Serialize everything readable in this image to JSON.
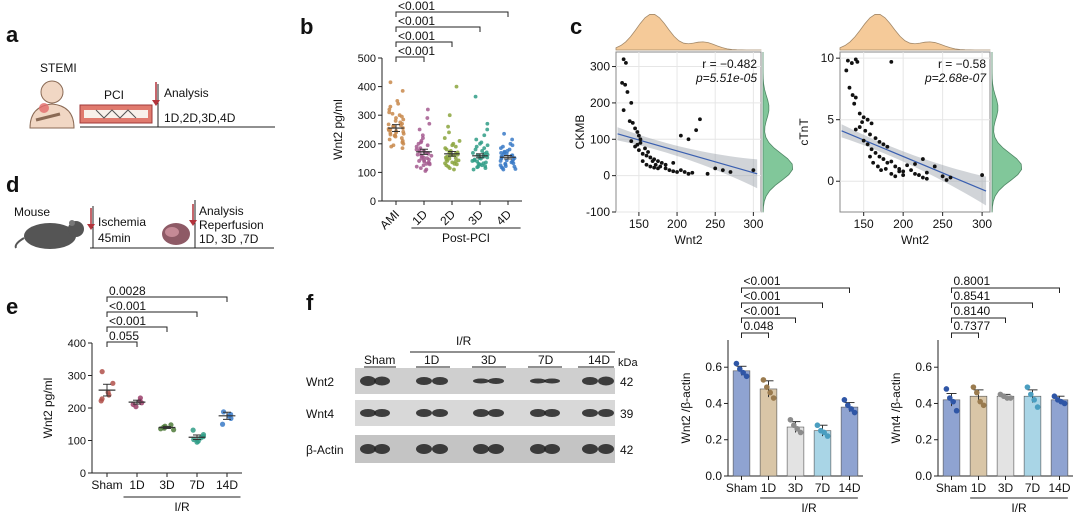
{
  "panel_letters": [
    "a",
    "b",
    "c",
    "d",
    "e",
    "f"
  ],
  "panel_a": {
    "stemi": "STEMI",
    "pci": "PCI",
    "analysis": "Analysis",
    "timepoints": "1D,2D,3D,4D"
  },
  "panel_d": {
    "mouse": "Mouse",
    "ischemia": "Ischemia",
    "ischemia_time": "45min",
    "analysis": "Analysis",
    "reperfusion": "Reperfusion",
    "timepoints": "1D, 3D ,7D"
  },
  "panel_f_blot": {
    "group_label": "I/R",
    "lanes": [
      "Sham",
      "1D",
      "3D",
      "7D",
      "14D"
    ],
    "kda_label": "kDa",
    "rows": [
      {
        "name": "Wnt2",
        "kda": "42"
      },
      {
        "name": "Wnt4",
        "kda": "39"
      },
      {
        "name": "β-Actin",
        "kda": "42"
      }
    ]
  },
  "chart_data": [
    {
      "id": "b",
      "type": "scatter",
      "ylabel": "Wnt2 pg/ml",
      "xlabel": "Post-PCI",
      "categories": [
        "AMI",
        "1D",
        "2D",
        "3D",
        "4D"
      ],
      "yticks": [
        0,
        100,
        200,
        300,
        400,
        500
      ],
      "ylim": [
        0,
        500
      ],
      "means": [
        255,
        172,
        165,
        158,
        153
      ],
      "sem": [
        12,
        9,
        8,
        7,
        6
      ],
      "points": [
        [
          415,
          385,
          350,
          340,
          330,
          320,
          310,
          305,
          300,
          295,
          290,
          285,
          280,
          275,
          270,
          268,
          265,
          262,
          260,
          255,
          252,
          250,
          248,
          245,
          242,
          240,
          238,
          235,
          232,
          230,
          228,
          225,
          220,
          215,
          210,
          205,
          200,
          195,
          190,
          185
        ],
        [
          320,
          290,
          270,
          250,
          230,
          220,
          210,
          205,
          200,
          195,
          190,
          185,
          180,
          178,
          175,
          172,
          170,
          168,
          165,
          162,
          160,
          158,
          155,
          152,
          150,
          148,
          145,
          142,
          140,
          138,
          135,
          132,
          130,
          128,
          125,
          120,
          115,
          110,
          105
        ],
        [
          400,
          300,
          260,
          240,
          220,
          210,
          200,
          195,
          190,
          185,
          180,
          175,
          172,
          170,
          168,
          165,
          162,
          160,
          158,
          155,
          152,
          150,
          148,
          145,
          142,
          140,
          138,
          135,
          132,
          130,
          128,
          125,
          120,
          115,
          110
        ],
        [
          365,
          270,
          250,
          230,
          215,
          205,
          200,
          195,
          190,
          185,
          180,
          175,
          170,
          168,
          165,
          162,
          160,
          158,
          155,
          152,
          150,
          148,
          145,
          142,
          140,
          138,
          135,
          132,
          130,
          128,
          125,
          122,
          120,
          118,
          115,
          110
        ],
        [
          235,
          215,
          200,
          195,
          190,
          185,
          180,
          175,
          172,
          170,
          168,
          165,
          162,
          160,
          158,
          155,
          152,
          150,
          148,
          145,
          142,
          140,
          138,
          135,
          132,
          130,
          128,
          125,
          122,
          120,
          118,
          115,
          112,
          110
        ]
      ],
      "colors": [
        "#c8884b",
        "#a45a8f",
        "#8ba53d",
        "#2f9c86",
        "#3a7ac7"
      ],
      "comparisons": [
        {
          "from": "AMI",
          "to": "1D",
          "p": "<0.001"
        },
        {
          "from": "AMI",
          "to": "2D",
          "p": "<0.001"
        },
        {
          "from": "AMI",
          "to": "3D",
          "p": "<0.001"
        },
        {
          "from": "AMI",
          "to": "4D",
          "p": "<0.001"
        }
      ]
    },
    {
      "id": "c1",
      "type": "scatter",
      "xlabel": "Wnt2",
      "ylabel": "CKMB",
      "xticks": [
        150,
        200,
        250,
        300
      ],
      "yticks": [
        -100,
        0,
        100,
        200,
        300
      ],
      "xlim": [
        120,
        310
      ],
      "ylim": [
        -100,
        340
      ],
      "r_text": "r = −0.482",
      "p_text": "p=5.51e-05",
      "fit": [
        [
          122,
          115
        ],
        [
          305,
          5
        ]
      ],
      "points": [
        [
          130,
          320
        ],
        [
          133,
          310
        ],
        [
          128,
          255
        ],
        [
          132,
          250
        ],
        [
          135,
          230
        ],
        [
          140,
          200
        ],
        [
          130,
          180
        ],
        [
          138,
          150
        ],
        [
          142,
          145
        ],
        [
          145,
          130
        ],
        [
          148,
          120
        ],
        [
          150,
          110
        ],
        [
          152,
          100
        ],
        [
          140,
          95
        ],
        [
          145,
          80
        ],
        [
          150,
          70
        ],
        [
          155,
          60
        ],
        [
          160,
          55
        ],
        [
          165,
          50
        ],
        [
          170,
          45
        ],
        [
          175,
          40
        ],
        [
          180,
          35
        ],
        [
          148,
          85
        ],
        [
          152,
          90
        ],
        [
          158,
          75
        ],
        [
          162,
          65
        ],
        [
          168,
          40
        ],
        [
          172,
          30
        ],
        [
          178,
          25
        ],
        [
          185,
          20
        ],
        [
          190,
          15
        ],
        [
          195,
          12
        ],
        [
          200,
          10
        ],
        [
          205,
          15
        ],
        [
          210,
          10
        ],
        [
          215,
          5
        ],
        [
          155,
          40
        ],
        [
          160,
          30
        ],
        [
          165,
          25
        ],
        [
          170,
          22
        ],
        [
          175,
          20
        ],
        [
          185,
          30
        ],
        [
          195,
          35
        ],
        [
          205,
          110
        ],
        [
          225,
          125
        ],
        [
          230,
          155
        ],
        [
          215,
          100
        ],
        [
          250,
          20
        ],
        [
          260,
          15
        ],
        [
          270,
          10
        ],
        [
          300,
          15
        ],
        [
          240,
          5
        ],
        [
          220,
          8
        ]
      ]
    },
    {
      "id": "c2",
      "type": "scatter",
      "xlabel": "Wnt2",
      "ylabel": "cTnT",
      "xticks": [
        150,
        200,
        250,
        300
      ],
      "yticks": [
        0,
        5,
        10
      ],
      "xlim": [
        120,
        310
      ],
      "ylim": [
        -2.5,
        10.5
      ],
      "r_text": "r = −0.58",
      "p_text": "p=2.68e-07",
      "fit": [
        [
          122,
          4.1
        ],
        [
          305,
          -0.8
        ]
      ],
      "points": [
        [
          130,
          9.8
        ],
        [
          135,
          9.6
        ],
        [
          140,
          9.9
        ],
        [
          142,
          9.7
        ],
        [
          128,
          9
        ],
        [
          132,
          7.6
        ],
        [
          136,
          7
        ],
        [
          140,
          6.8
        ],
        [
          138,
          6.3
        ],
        [
          145,
          5.5
        ],
        [
          150,
          5.2
        ],
        [
          155,
          5
        ],
        [
          148,
          4.8
        ],
        [
          140,
          4.2
        ],
        [
          145,
          4.4
        ],
        [
          152,
          4.1
        ],
        [
          158,
          3.8
        ],
        [
          160,
          4.7
        ],
        [
          165,
          3.5
        ],
        [
          170,
          3.2
        ],
        [
          175,
          3
        ],
        [
          180,
          2.8
        ],
        [
          150,
          3.3
        ],
        [
          155,
          3
        ],
        [
          160,
          2.6
        ],
        [
          165,
          2.3
        ],
        [
          170,
          2
        ],
        [
          175,
          1.8
        ],
        [
          180,
          1.5
        ],
        [
          185,
          1.6
        ],
        [
          190,
          1.2
        ],
        [
          195,
          1
        ],
        [
          200,
          0.8
        ],
        [
          205,
          1.3
        ],
        [
          210,
          0.9
        ],
        [
          215,
          0.6
        ],
        [
          220,
          0.5
        ],
        [
          225,
          0.3
        ],
        [
          230,
          0.2
        ],
        [
          158,
          2
        ],
        [
          162,
          1.5
        ],
        [
          168,
          1.2
        ],
        [
          172,
          0.9
        ],
        [
          178,
          1
        ],
        [
          185,
          0.6
        ],
        [
          190,
          0.4
        ],
        [
          195,
          0.8
        ],
        [
          200,
          0.5
        ],
        [
          215,
          1.4
        ],
        [
          225,
          1.8
        ],
        [
          240,
          1.2
        ],
        [
          250,
          0.4
        ],
        [
          255,
          0.1
        ],
        [
          260,
          0.3
        ],
        [
          300,
          0.5
        ],
        [
          185,
          9.7
        ],
        [
          230,
          0.7
        ]
      ]
    },
    {
      "id": "e",
      "type": "scatter",
      "ylabel": "Wnt2  pg/ml",
      "xlabel": "I/R",
      "categories": [
        "Sham",
        "1D",
        "3D",
        "7D",
        "14D"
      ],
      "yticks": [
        0,
        100,
        200,
        300,
        400
      ],
      "ylim": [
        0,
        400
      ],
      "means": [
        255,
        218,
        140,
        110,
        176
      ],
      "sem": [
        18,
        6,
        3,
        7,
        11
      ],
      "points": [
        [
          312,
          276,
          248,
          240,
          228,
          222
        ],
        [
          231,
          222,
          216,
          211,
          204
        ],
        [
          148,
          144,
          141,
          138,
          136,
          133
        ],
        [
          132,
          118,
          112,
          108,
          103,
          98,
          95
        ],
        [
          188,
          180,
          176,
          168,
          150
        ]
      ],
      "colors": [
        "#b0504a",
        "#9a3e6a",
        "#4f7a3a",
        "#2f9c86",
        "#3a7ac7"
      ],
      "comparisons": [
        {
          "from": "Sham",
          "to": "1D",
          "p": "0.055"
        },
        {
          "from": "Sham",
          "to": "3D",
          "p": "<0.001"
        },
        {
          "from": "Sham",
          "to": "7D",
          "p": "<0.001"
        },
        {
          "from": "Sham",
          "to": "14D",
          "p": "0.0028"
        }
      ]
    },
    {
      "id": "f1",
      "type": "bar",
      "ylabel": "Wnt2 /β-actin",
      "xlabel": "I/R",
      "categories": [
        "Sham",
        "1D",
        "3D",
        "7D",
        "14D"
      ],
      "values": [
        0.58,
        0.48,
        0.27,
        0.25,
        0.38
      ],
      "sem": [
        0.025,
        0.045,
        0.03,
        0.03,
        0.025
      ],
      "yticks": [
        "0.0",
        "0.2",
        "0.4",
        "0.6"
      ],
      "ylim": [
        0,
        0.75
      ],
      "points": [
        [
          0.62,
          0.59,
          0.57,
          0.55
        ],
        [
          0.53,
          0.49,
          0.46,
          0.43
        ],
        [
          0.31,
          0.28,
          0.26,
          0.24
        ],
        [
          0.28,
          0.25,
          0.24,
          0.22
        ],
        [
          0.42,
          0.39,
          0.37,
          0.35
        ]
      ],
      "fill_colors": [
        "#8fa3d1",
        "#d9c6a7",
        "#e3e3e3",
        "#a9d5e6",
        "#8fa3d1"
      ],
      "point_colors": [
        "#2f56a6",
        "#9a7b4f",
        "#8c8c8c",
        "#4a9ec0",
        "#2f56a6"
      ],
      "comparisons": [
        {
          "from": "Sham",
          "to": "1D",
          "p": "0.048"
        },
        {
          "from": "Sham",
          "to": "3D",
          "p": "<0.001"
        },
        {
          "from": "Sham",
          "to": "7D",
          "p": "<0.001"
        },
        {
          "from": "Sham",
          "to": "14D",
          "p": "<0.001"
        }
      ]
    },
    {
      "id": "f2",
      "type": "bar",
      "ylabel": "Wnt4 /β-actin",
      "xlabel": "I/R",
      "categories": [
        "Sham",
        "1D",
        "3D",
        "7D",
        "14D"
      ],
      "values": [
        0.42,
        0.44,
        0.44,
        0.44,
        0.42
      ],
      "sem": [
        0.035,
        0.035,
        0.01,
        0.035,
        0.02
      ],
      "yticks": [
        "0.0",
        "0.2",
        "0.4",
        "0.6"
      ],
      "ylim": [
        0,
        0.75
      ],
      "points": [
        [
          0.48,
          0.43,
          0.41,
          0.36
        ],
        [
          0.49,
          0.46,
          0.41,
          0.39
        ],
        [
          0.45,
          0.44,
          0.43,
          0.43
        ],
        [
          0.49,
          0.45,
          0.42,
          0.38
        ],
        [
          0.44,
          0.42,
          0.41,
          0.4
        ]
      ],
      "fill_colors": [
        "#8fa3d1",
        "#d9c6a7",
        "#e3e3e3",
        "#a9d5e6",
        "#8fa3d1"
      ],
      "point_colors": [
        "#2f56a6",
        "#9a7b4f",
        "#8c8c8c",
        "#4a9ec0",
        "#2f56a6"
      ],
      "comparisons": [
        {
          "from": "Sham",
          "to": "1D",
          "p": "0.7377"
        },
        {
          "from": "Sham",
          "to": "3D",
          "p": "0.8140"
        },
        {
          "from": "Sham",
          "to": "7D",
          "p": "0.8541"
        },
        {
          "from": "Sham",
          "to": "14D",
          "p": "0.8001"
        }
      ]
    }
  ]
}
